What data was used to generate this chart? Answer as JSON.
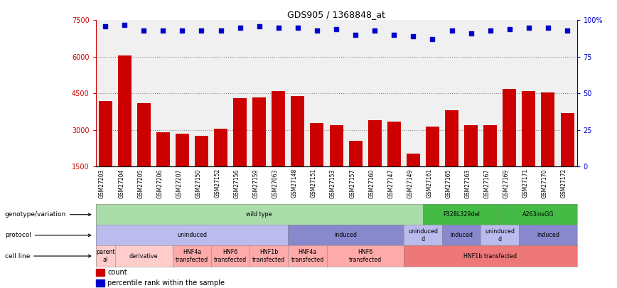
{
  "title": "GDS905 / 1368848_at",
  "samples": [
    "GSM27203",
    "GSM27204",
    "GSM27205",
    "GSM27206",
    "GSM27207",
    "GSM27150",
    "GSM27152",
    "GSM27156",
    "GSM27159",
    "GSM27063",
    "GSM27148",
    "GSM27151",
    "GSM27153",
    "GSM27157",
    "GSM27160",
    "GSM27147",
    "GSM27149",
    "GSM27161",
    "GSM27165",
    "GSM27163",
    "GSM27167",
    "GSM27169",
    "GSM27171",
    "GSM27170",
    "GSM27172"
  ],
  "counts": [
    4200,
    6050,
    4100,
    2900,
    2850,
    2780,
    3050,
    4300,
    4350,
    4600,
    4400,
    3300,
    3200,
    2550,
    3400,
    3350,
    2050,
    3150,
    3800,
    3200,
    3200,
    4700,
    4600,
    4550,
    3700
  ],
  "percentile_ranks": [
    96,
    97,
    93,
    93,
    93,
    93,
    93,
    95,
    96,
    95,
    95,
    93,
    94,
    90,
    93,
    90,
    89,
    87,
    93,
    91,
    93,
    94,
    95,
    95,
    93
  ],
  "ylim_left": [
    1500,
    7500
  ],
  "yticks_left": [
    1500,
    3000,
    4500,
    6000,
    7500
  ],
  "ylim_right": [
    0,
    100
  ],
  "yticks_right": [
    0,
    25,
    50,
    75,
    100
  ],
  "bar_color": "#cc0000",
  "dot_color": "#0000cc",
  "bg_color": "#ffffff",
  "plot_bg": "#f0f0f0",
  "genotype_row": [
    {
      "label": "wild type",
      "start": 0,
      "end": 17,
      "color": "#aaddaa"
    },
    {
      "label": "P328L329del",
      "start": 17,
      "end": 21,
      "color": "#44bb44"
    },
    {
      "label": "A263insGG",
      "start": 21,
      "end": 25,
      "color": "#44bb44"
    }
  ],
  "protocol_row": [
    {
      "label": "uninduced",
      "start": 0,
      "end": 10,
      "color": "#bbbbee"
    },
    {
      "label": "induced",
      "start": 10,
      "end": 16,
      "color": "#8888cc"
    },
    {
      "label": "uninduced\nd",
      "start": 16,
      "end": 18,
      "color": "#bbbbee"
    },
    {
      "label": "induced",
      "start": 18,
      "end": 20,
      "color": "#8888cc"
    },
    {
      "label": "uninduced\nd",
      "start": 20,
      "end": 22,
      "color": "#bbbbee"
    },
    {
      "label": "induced",
      "start": 22,
      "end": 25,
      "color": "#8888cc"
    }
  ],
  "cell_line_row": [
    {
      "label": "parent\nal",
      "start": 0,
      "end": 1,
      "color": "#ffcccc"
    },
    {
      "label": "derivative",
      "start": 1,
      "end": 4,
      "color": "#ffcccc"
    },
    {
      "label": "HNF4a\ntransfected",
      "start": 4,
      "end": 6,
      "color": "#ffaaaa"
    },
    {
      "label": "HNF6\ntransfected",
      "start": 6,
      "end": 8,
      "color": "#ffaaaa"
    },
    {
      "label": "HNF1b\ntransfected",
      "start": 8,
      "end": 10,
      "color": "#ffaaaa"
    },
    {
      "label": "HNF4a\ntransfected",
      "start": 10,
      "end": 12,
      "color": "#ffaaaa"
    },
    {
      "label": "HNF6\ntransfected",
      "start": 12,
      "end": 16,
      "color": "#ffaaaa"
    },
    {
      "label": "HNF1b transfected",
      "start": 16,
      "end": 25,
      "color": "#ee7777"
    }
  ],
  "row_labels": [
    "genotype/variation",
    "protocol",
    "cell line"
  ]
}
